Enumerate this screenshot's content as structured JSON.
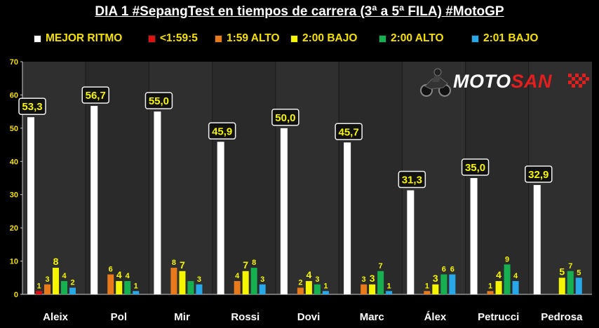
{
  "chart_data": {
    "type": "bar",
    "title": "DIA 1 #SepangTest en tiempos de carrera (3ª a 5ª FILA) #MotoGP",
    "categories": [
      "Aleix",
      "Pol",
      "Mir",
      "Rossi",
      "Dovi",
      "Marc",
      "Álex",
      "Petrucci",
      "Pedrosa"
    ],
    "ylim": [
      0,
      70
    ],
    "yticks": [
      0,
      10,
      20,
      30,
      40,
      50,
      60,
      70
    ],
    "grid": false,
    "legend_position": "top",
    "series": [
      {
        "name": "MEJOR RITMO",
        "color": "#ffffff",
        "values": [
          53.3,
          56.7,
          55.0,
          45.9,
          50.0,
          45.7,
          31.3,
          35.0,
          32.9
        ],
        "labels": [
          "53,3",
          "56,7",
          "55,0",
          "45,9",
          "50,0",
          "45,7",
          "31,3",
          "35,0",
          "32,9"
        ]
      },
      {
        "name": "<1:59:5",
        "color": "#e01010",
        "values": [
          1,
          null,
          null,
          null,
          null,
          null,
          null,
          null,
          null
        ],
        "labels": [
          "1",
          "",
          "",
          "",
          "",
          "",
          "",
          "",
          ""
        ]
      },
      {
        "name": "1:59 ALTO",
        "color": "#e87a1c",
        "values": [
          3,
          6,
          8,
          4,
          2,
          3,
          1,
          1,
          null
        ],
        "labels": [
          "3",
          "6",
          "8",
          "4",
          "2",
          "3",
          "1",
          "1",
          ""
        ]
      },
      {
        "name": "2:00 BAJO",
        "color": "#f5f500",
        "values": [
          8,
          4,
          7,
          7,
          4,
          3,
          3,
          4,
          5
        ],
        "labels": [
          "8",
          "4",
          "7",
          "7",
          "4",
          "3",
          "3",
          "4",
          "5"
        ]
      },
      {
        "name": "2:00 ALTO",
        "color": "#16b050",
        "values": [
          4,
          4,
          4,
          8,
          3,
          7,
          6,
          9,
          7
        ],
        "labels": [
          "4",
          "4",
          "",
          "8",
          "3",
          "7",
          "6",
          "9",
          "7"
        ]
      },
      {
        "name": "2:01 BAJO",
        "color": "#28a8e8",
        "values": [
          2,
          1,
          3,
          3,
          1,
          1,
          6,
          4,
          5
        ],
        "labels": [
          "2",
          "1",
          "3",
          "3",
          "1",
          "1",
          "6",
          "4",
          "5"
        ]
      }
    ]
  },
  "logo": {
    "part1": "MOTO",
    "part2": "SAN",
    "icon": "motorcycle-rider-icon"
  }
}
